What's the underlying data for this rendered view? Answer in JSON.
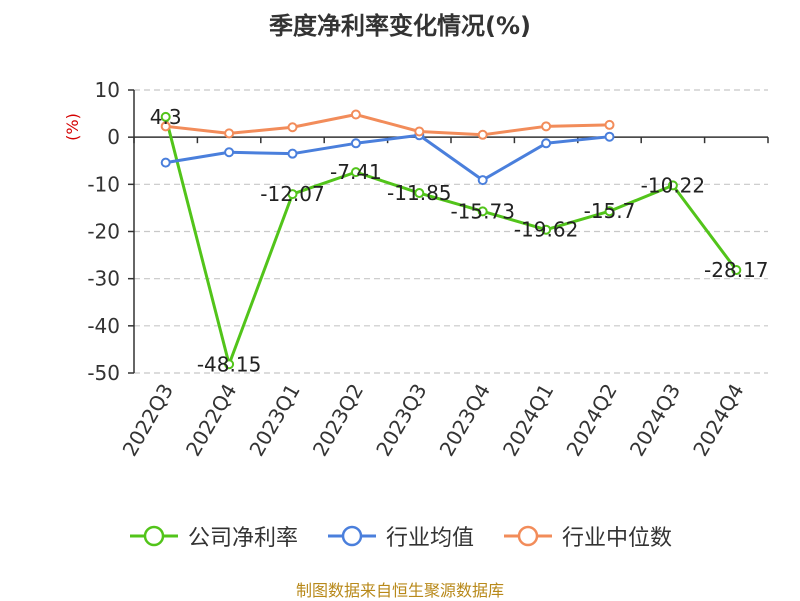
{
  "chart_data": {
    "type": "line",
    "title": "季度净利率变化情况(%)",
    "ylabel": "(%)",
    "ylim": [
      -50,
      10
    ],
    "yticks": [
      10,
      0,
      -10,
      -20,
      -30,
      -40,
      -50
    ],
    "categories": [
      "2022Q3",
      "2022Q4",
      "2023Q1",
      "2023Q2",
      "2023Q3",
      "2023Q4",
      "2024Q1",
      "2024Q2",
      "2024Q3",
      "2024Q4"
    ],
    "grid": true,
    "legend_position": "bottom",
    "series": [
      {
        "name": "公司净利率",
        "color": "#52c41a",
        "labeled": true,
        "values": [
          4.3,
          -48.15,
          -12.07,
          -7.41,
          -11.85,
          -15.73,
          -19.62,
          -15.7,
          -10.22,
          -28.17
        ]
      },
      {
        "name": "行业均值",
        "color": "#4a7fdc",
        "labeled": false,
        "values": [
          -5.4,
          -3.2,
          -3.5,
          -1.3,
          0.4,
          -9.1,
          -1.3,
          0.1,
          null,
          null
        ]
      },
      {
        "name": "行业中位数",
        "color": "#f28c5a",
        "labeled": false,
        "values": [
          2.3,
          0.8,
          2.1,
          4.8,
          1.2,
          0.5,
          2.3,
          2.6,
          null,
          null
        ]
      }
    ]
  },
  "source": "制图数据来自恒生聚源数据库"
}
